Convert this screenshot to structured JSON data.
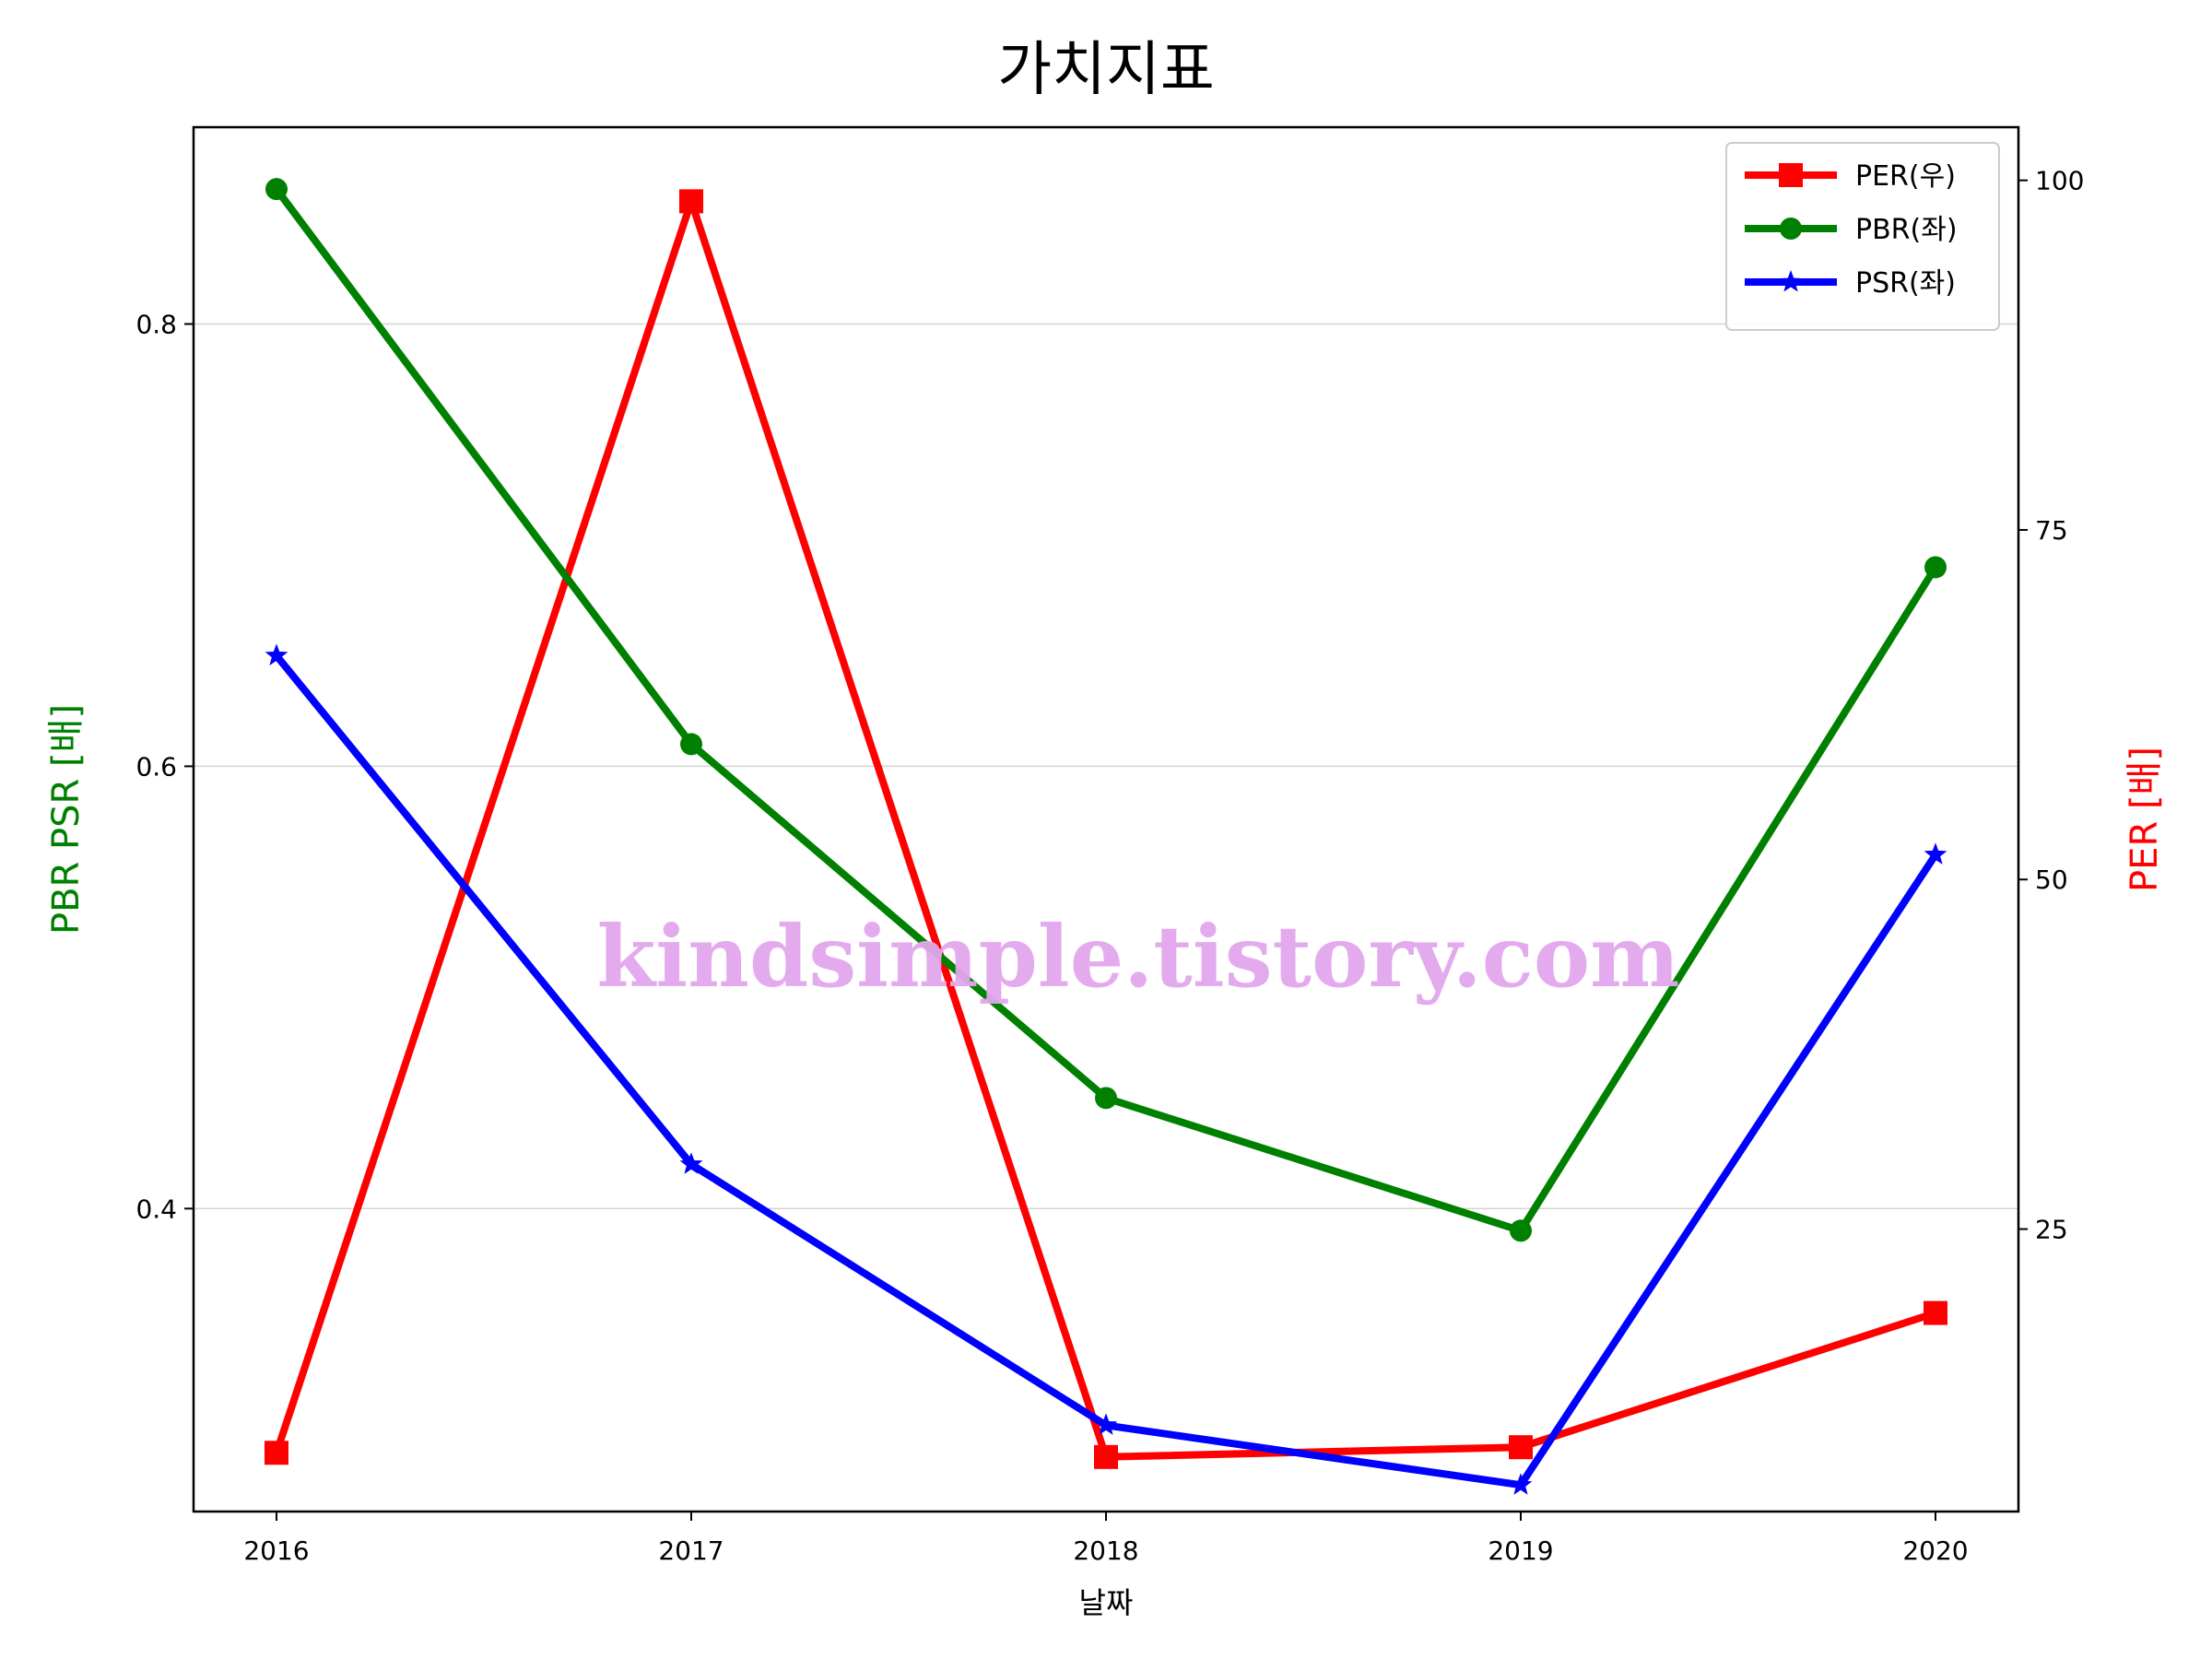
{
  "chart_data": {
    "type": "line",
    "title": "가치지표",
    "xlabel": "날짜",
    "ylabel_left": "PBR PSR [배]",
    "ylabel_right": "PER [배]",
    "watermark": "kindsimple.tistory.com",
    "x": [
      2016,
      2017,
      2018,
      2019,
      2020
    ],
    "x_tick_labels": [
      "2016",
      "2017",
      "2018",
      "2019",
      "2020"
    ],
    "ylim_left": [
      0.263,
      0.889
    ],
    "yticks_left": [
      0.4,
      0.6,
      0.8
    ],
    "ytick_labels_left": [
      "0.4",
      "0.6",
      "0.8"
    ],
    "ylim_right": [
      4.8,
      103.8
    ],
    "yticks_right": [
      25,
      50,
      75,
      100
    ],
    "ytick_labels_right": [
      "25",
      "50",
      "75",
      "100"
    ],
    "grid": "horizontal",
    "legend_position": "top-right",
    "series": [
      {
        "name": "PER(우)",
        "axis": "right",
        "color": "#ff0000",
        "marker": "square",
        "values": [
          9.0,
          98.5,
          8.7,
          9.4,
          19.0
        ]
      },
      {
        "name": "PBR(좌)",
        "axis": "left",
        "color": "#008000",
        "marker": "circle",
        "values": [
          0.861,
          0.61,
          0.45,
          0.39,
          0.69
        ]
      },
      {
        "name": "PSR(좌)",
        "axis": "left",
        "color": "#0000ff",
        "marker": "star",
        "values": [
          0.65,
          0.42,
          0.302,
          0.275,
          0.56
        ]
      }
    ],
    "colors": {
      "left_label": "#008000",
      "right_label": "#ff0000",
      "watermark": "#e2a6ee"
    }
  }
}
